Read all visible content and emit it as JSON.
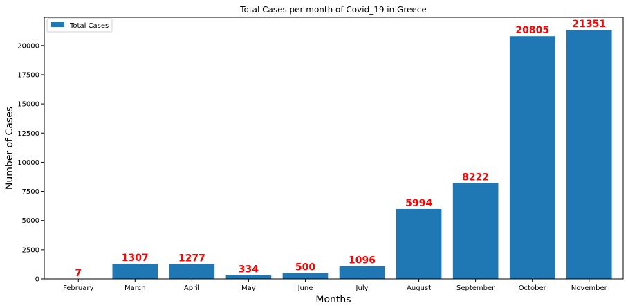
{
  "chart_data": {
    "type": "bar",
    "title": "Total Cases per month of Covid_19 in Greece",
    "xlabel": "Months",
    "ylabel": "Number of Cases",
    "categories": [
      "February",
      "March",
      "April",
      "May",
      "June",
      "July",
      "August",
      "September",
      "October",
      "November"
    ],
    "series": [
      {
        "name": "Total Cases",
        "values": [
          7,
          1307,
          1277,
          334,
          500,
          1096,
          5994,
          8222,
          20805,
          21351
        ],
        "color": "#1f77b4"
      }
    ],
    "ylim": [
      0,
      22420
    ],
    "yticks": [
      0,
      2500,
      5000,
      7500,
      10000,
      12500,
      15000,
      17500,
      20000
    ],
    "data_label_color": "#ff0000",
    "legend_position": "top-left",
    "grid": false
  }
}
